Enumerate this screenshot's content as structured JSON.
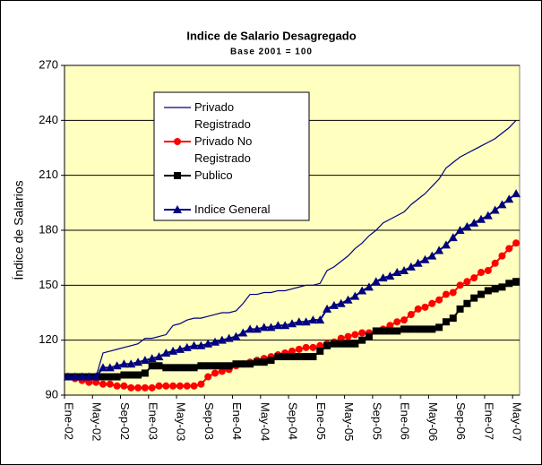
{
  "chart_data": {
    "type": "line",
    "title": "Indice de Salario Desagregado",
    "subtitle": "Base 2001 = 100",
    "y_label": "Índice de Salarios",
    "categories": [
      "Ene-02",
      null,
      null,
      null,
      "May-02",
      null,
      null,
      null,
      "Sep-02",
      null,
      null,
      null,
      "Ene-03",
      null,
      null,
      null,
      "May-03",
      null,
      null,
      null,
      "Sep-03",
      null,
      null,
      null,
      "Ene-04",
      null,
      null,
      null,
      "May-04",
      null,
      null,
      null,
      "Sep-04",
      null,
      null,
      null,
      "Ene-05",
      null,
      null,
      null,
      "May-05",
      null,
      null,
      null,
      "Sep-05",
      null,
      null,
      null,
      "Ene-06",
      null,
      null,
      null,
      "May-06",
      null,
      null,
      null,
      "Sep-06",
      null,
      null,
      null,
      "Ene-07",
      null,
      null,
      null,
      "May-07"
    ],
    "series": [
      {
        "name": "Privado Registrado",
        "color": "#000080",
        "marker": "none",
        "values": [
          100,
          100,
          100,
          100,
          100,
          113,
          114,
          115,
          116,
          117,
          118,
          121,
          121,
          122,
          123,
          128,
          129,
          131,
          132,
          132,
          133,
          134,
          135,
          135,
          136,
          140,
          145,
          145,
          146,
          146,
          147,
          147,
          148,
          149,
          150,
          150,
          151,
          158,
          160,
          163,
          166,
          170,
          173,
          177,
          180,
          184,
          186,
          188,
          190,
          194,
          197,
          200,
          204,
          208,
          214,
          217,
          220,
          222,
          224,
          226,
          228,
          230,
          233,
          236,
          240
        ]
      },
      {
        "name": "Privado No Registrado",
        "color": "#ff0000",
        "marker": "circle",
        "values": [
          100,
          99,
          98,
          97,
          97,
          96,
          96,
          95,
          95,
          94,
          94,
          94,
          94,
          95,
          95,
          95,
          95,
          95,
          95,
          96,
          100,
          102,
          103,
          104,
          106,
          107,
          108,
          109,
          110,
          111,
          112,
          113,
          114,
          115,
          116,
          116,
          117,
          118,
          119,
          121,
          122,
          123,
          124,
          124,
          125,
          126,
          128,
          130,
          131,
          134,
          137,
          138,
          140,
          142,
          145,
          146,
          150,
          152,
          154,
          157,
          158,
          162,
          166,
          170,
          173
        ]
      },
      {
        "name": "Publico",
        "color": "#000000",
        "marker": "square",
        "values": [
          100,
          100,
          100,
          100,
          100,
          100,
          100,
          100,
          101,
          101,
          101,
          102,
          106,
          106,
          105,
          105,
          105,
          105,
          105,
          106,
          106,
          106,
          106,
          106,
          107,
          107,
          107,
          108,
          108,
          109,
          111,
          111,
          111,
          111,
          111,
          111,
          114,
          117,
          118,
          118,
          118,
          118,
          120,
          122,
          125,
          125,
          125,
          125,
          126,
          126,
          126,
          126,
          126,
          127,
          130,
          132,
          137,
          140,
          143,
          145,
          147,
          148,
          149,
          151,
          152
        ]
      },
      {
        "name": "Indice General",
        "color": "#000080",
        "marker": "triangle",
        "values": [
          100,
          100,
          100,
          100,
          100,
          105,
          105,
          106,
          107,
          107,
          108,
          109,
          110,
          111,
          113,
          114,
          115,
          116,
          117,
          117,
          118,
          119,
          120,
          121,
          122,
          124,
          126,
          126,
          127,
          127,
          128,
          128,
          129,
          130,
          130,
          131,
          131,
          137,
          139,
          140,
          142,
          144,
          147,
          149,
          152,
          154,
          155,
          157,
          158,
          160,
          162,
          164,
          166,
          169,
          172,
          176,
          180,
          182,
          184,
          186,
          188,
          191,
          194,
          197,
          200
        ]
      }
    ],
    "ylim": [
      90,
      270
    ],
    "yticks": [
      90,
      120,
      150,
      180,
      210,
      240,
      270
    ],
    "grid": true,
    "plot_color": "#ffffc0"
  }
}
